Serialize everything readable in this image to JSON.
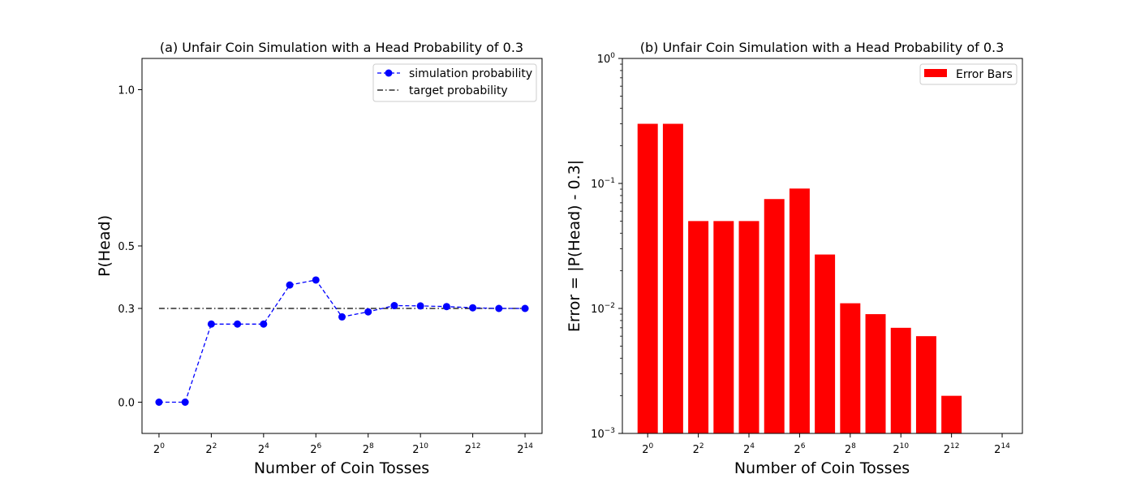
{
  "chart_data": [
    {
      "type": "line",
      "title": "(a) Unfair Coin Simulation with a Head Probability of 0.3",
      "xlabel": "Number of Coin Tosses",
      "ylabel": "P(Head)",
      "x_exponents": [
        0,
        1,
        2,
        3,
        4,
        5,
        6,
        7,
        8,
        9,
        10,
        11,
        12,
        13,
        14
      ],
      "xtick_exponents": [
        0,
        2,
        4,
        6,
        8,
        10,
        12,
        14
      ],
      "xtick_labels": [
        {
          "base": "2",
          "exp": "0"
        },
        {
          "base": "2",
          "exp": "2"
        },
        {
          "base": "2",
          "exp": "4"
        },
        {
          "base": "2",
          "exp": "6"
        },
        {
          "base": "2",
          "exp": "8"
        },
        {
          "base": "2",
          "exp": "10"
        },
        {
          "base": "2",
          "exp": "12"
        },
        {
          "base": "2",
          "exp": "14"
        }
      ],
      "xlim": [
        -0.65,
        14.65
      ],
      "ylim": [
        -0.1,
        1.1
      ],
      "yticks": [
        0.0,
        0.3,
        0.5,
        1.0
      ],
      "ytick_labels": [
        "0.0",
        "0.3",
        "0.5",
        "1.0"
      ],
      "series": [
        {
          "name": "simulation probability",
          "color": "#0000ff",
          "style": "dashed-marker",
          "values": [
            0.0,
            0.0,
            0.25,
            0.25,
            0.25,
            0.375,
            0.391,
            0.273,
            0.289,
            0.309,
            0.308,
            0.306,
            0.302,
            0.3,
            0.3
          ]
        },
        {
          "name": "target probability",
          "color": "#000000",
          "style": "dashdot",
          "values": [
            0.3,
            0.3,
            0.3,
            0.3,
            0.3,
            0.3,
            0.3,
            0.3,
            0.3,
            0.3,
            0.3,
            0.3,
            0.3,
            0.3,
            0.3
          ]
        }
      ],
      "legend": [
        "simulation probability",
        "target probability"
      ],
      "legend_position": "top-right"
    },
    {
      "type": "bar",
      "title": "(b) Unfair Coin Simulation with a Head Probability of 0.3",
      "xlabel": "Number of Coin Tosses",
      "ylabel": "Error = |P(Head) - 0.3|",
      "yscale": "log",
      "x_exponents": [
        0,
        1,
        2,
        3,
        4,
        5,
        6,
        7,
        8,
        9,
        10,
        11,
        12,
        13,
        14
      ],
      "xtick_exponents": [
        0,
        2,
        4,
        6,
        8,
        10,
        12,
        14
      ],
      "xtick_labels": [
        {
          "base": "2",
          "exp": "0"
        },
        {
          "base": "2",
          "exp": "2"
        },
        {
          "base": "2",
          "exp": "4"
        },
        {
          "base": "2",
          "exp": "6"
        },
        {
          "base": "2",
          "exp": "8"
        },
        {
          "base": "2",
          "exp": "10"
        },
        {
          "base": "2",
          "exp": "12"
        },
        {
          "base": "2",
          "exp": "14"
        }
      ],
      "xlim": [
        -1.0,
        14.8
      ],
      "ylim": [
        0.001,
        1.0
      ],
      "ytick_labels": [
        {
          "base": "10",
          "exp": "−3",
          "value": 0.001
        },
        {
          "base": "10",
          "exp": "−2",
          "value": 0.01
        },
        {
          "base": "10",
          "exp": "−1",
          "value": 0.1
        },
        {
          "base": "10",
          "exp": "0",
          "value": 1.0
        }
      ],
      "series": [
        {
          "name": "Error Bars",
          "color": "#ff0000",
          "values": [
            0.3,
            0.3,
            0.05,
            0.05,
            0.05,
            0.075,
            0.091,
            0.027,
            0.011,
            0.009,
            0.007,
            0.006,
            0.002,
            0.0,
            0.0
          ]
        }
      ],
      "legend": [
        "Error Bars"
      ],
      "legend_position": "top-right"
    }
  ]
}
